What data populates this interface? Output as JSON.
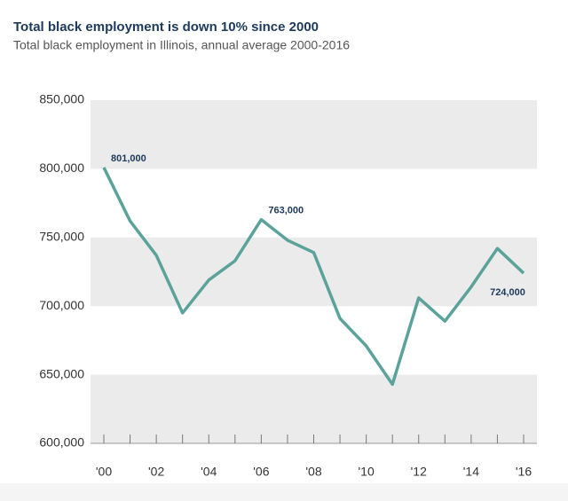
{
  "chart_data": {
    "type": "line",
    "title": "Total black employment is down 10% since 2000",
    "subtitle": "Total black employment in Illinois, annual average 2000-2016",
    "categories": [
      "'00",
      null,
      "'02",
      null,
      "'04",
      null,
      "'06",
      null,
      "'08",
      null,
      "'10",
      null,
      "'12",
      null,
      "'14",
      null,
      "'16"
    ],
    "values": [
      801000,
      762000,
      737000,
      695000,
      719000,
      733000,
      763000,
      748000,
      739000,
      691000,
      671000,
      643000,
      706000,
      689000,
      714000,
      742000,
      724000
    ],
    "value_labels": [
      "801,000",
      null,
      null,
      null,
      null,
      null,
      "763,000",
      null,
      null,
      null,
      null,
      null,
      null,
      null,
      null,
      null,
      "724,000"
    ],
    "color": "#5ba39a",
    "band_color": "#ebebeb",
    "ylim": [
      600000,
      850000
    ],
    "yticks": [
      {
        "value": 600000,
        "label": "600,000"
      },
      {
        "value": 650000,
        "label": "650,000"
      },
      {
        "value": 700000,
        "label": "700,000"
      },
      {
        "value": 750000,
        "label": "750,000"
      },
      {
        "value": 800000,
        "label": "800,000"
      },
      {
        "value": 850000,
        "label": "850,000"
      }
    ],
    "bands": true
  }
}
